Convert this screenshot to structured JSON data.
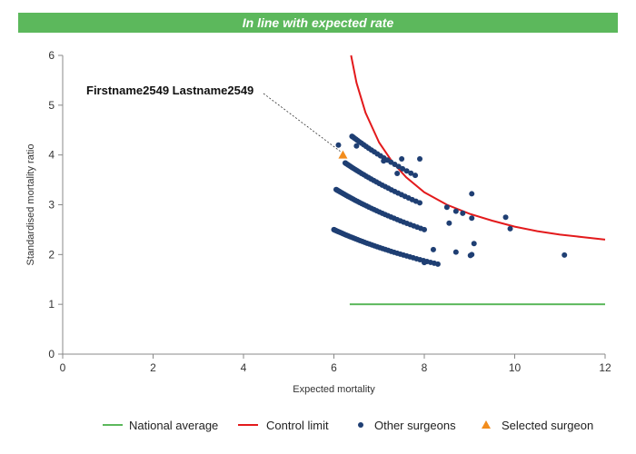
{
  "banner": {
    "text": "In line with expected rate"
  },
  "colors": {
    "national": "#5cb85c",
    "control": "#e31a1c",
    "others": "#1f3f73",
    "selected": "#f28c1c",
    "banner": "#5cb85c"
  },
  "chart_data": {
    "type": "scatter",
    "xlabel": "Expected mortality",
    "ylabel": "Standardised mortality ratio",
    "xlim": [
      0,
      12
    ],
    "ylim": [
      0,
      6
    ],
    "xticks": [
      0,
      2,
      4,
      6,
      8,
      10,
      12
    ],
    "yticks": [
      0,
      1,
      2,
      3,
      4,
      5,
      6
    ],
    "annotation": {
      "text": "Firstname2549 Lastname2549",
      "x": 6.2,
      "y": 4.0
    },
    "legend": {
      "placement": "bottom",
      "items": [
        "National average",
        "Control limit",
        "Other surgeons",
        "Selected surgeon"
      ]
    },
    "series": [
      {
        "name": "National average",
        "kind": "line",
        "x": [
          6.35,
          12
        ],
        "y": [
          1.0,
          1.0
        ]
      },
      {
        "name": "Control limit",
        "kind": "curve",
        "x": [
          6.38,
          6.5,
          6.7,
          7.0,
          7.3,
          7.6,
          8.0,
          8.5,
          9.0,
          9.5,
          10.0,
          10.5,
          11.0,
          11.5,
          12.0
        ],
        "y": [
          6.0,
          5.45,
          4.85,
          4.25,
          3.85,
          3.55,
          3.25,
          3.0,
          2.82,
          2.68,
          2.56,
          2.47,
          2.4,
          2.35,
          2.3
        ]
      },
      {
        "name": "Other surgeons",
        "kind": "points",
        "bands": [
          {
            "k": 15.0,
            "x0": 6.0,
            "x1": 8.3,
            "n": 46
          },
          {
            "k": 20.0,
            "x0": 6.05,
            "x1": 8.0,
            "n": 40
          },
          {
            "k": 24.0,
            "x0": 6.25,
            "x1": 7.9,
            "n": 32
          },
          {
            "k": 28.0,
            "x0": 6.4,
            "x1": 7.8,
            "n": 24
          }
        ],
        "extra_points": [
          [
            6.1,
            4.2
          ],
          [
            6.5,
            4.18
          ],
          [
            7.5,
            3.92
          ],
          [
            7.9,
            3.92
          ],
          [
            7.1,
            3.88
          ],
          [
            7.4,
            3.63
          ],
          [
            8.5,
            2.95
          ],
          [
            8.55,
            2.63
          ],
          [
            8.7,
            2.87
          ],
          [
            8.85,
            2.83
          ],
          [
            9.05,
            3.22
          ],
          [
            9.05,
            2.73
          ],
          [
            9.8,
            2.75
          ],
          [
            9.9,
            2.52
          ],
          [
            8.7,
            2.05
          ],
          [
            8.2,
            2.1
          ],
          [
            9.1,
            2.22
          ],
          [
            9.05,
            2.0
          ],
          [
            9.02,
            1.98
          ],
          [
            8.0,
            1.84
          ],
          [
            11.1,
            1.99
          ]
        ]
      },
      {
        "name": "Selected surgeon",
        "kind": "marker",
        "x": [
          6.2
        ],
        "y": [
          4.0
        ]
      }
    ]
  }
}
